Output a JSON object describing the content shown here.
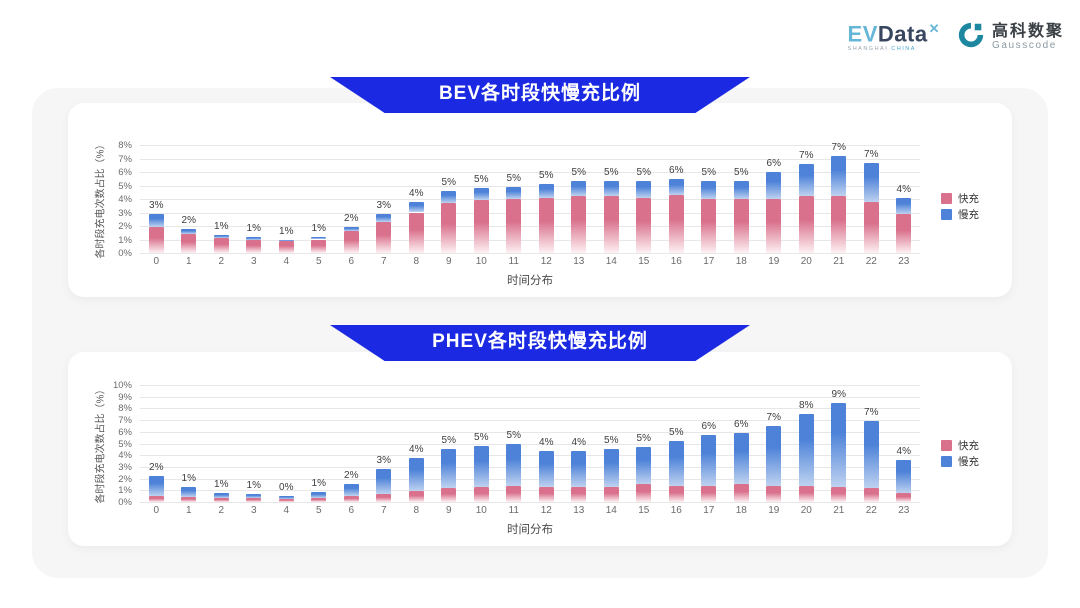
{
  "page": {
    "panel_bg": "#f7f6f7",
    "banner_color": "#1b2ae2",
    "fast_color": "#d9718c",
    "slow_color": "#4d82d8"
  },
  "header": {
    "evdata": {
      "ev": "EV",
      "data": "Data",
      "sup": "✕",
      "tagline_left": "SHANGHAI",
      "tagline_right": "CHINA"
    },
    "gausscode": {
      "cn": "高科数聚",
      "en": "Gausscode",
      "icon": "gausscode-g-mark",
      "icon_color": "#1d87a0"
    }
  },
  "chart_data": [
    {
      "type": "bar",
      "stacked": true,
      "title": "BEV各时段快慢充比例",
      "xlabel": "时间分布",
      "ylabel": "各时段充电次数占比（%）",
      "ylim": [
        0,
        8
      ],
      "ytick_step": 1,
      "grid": true,
      "legend_position": "right",
      "categories": [
        "0",
        "1",
        "2",
        "3",
        "4",
        "5",
        "6",
        "7",
        "8",
        "9",
        "10",
        "11",
        "12",
        "13",
        "14",
        "15",
        "16",
        "17",
        "18",
        "19",
        "20",
        "21",
        "22",
        "23"
      ],
      "series": [
        {
          "name": "快充",
          "color": "#d9718c",
          "color_fade": "#fdf1f4",
          "values": [
            1.9,
            1.4,
            1.1,
            0.95,
            0.9,
            1.0,
            1.6,
            2.3,
            3.0,
            3.7,
            3.9,
            4.0,
            4.1,
            4.2,
            4.2,
            4.1,
            4.3,
            4.0,
            4.0,
            4.0,
            4.2,
            4.2,
            3.8,
            2.9
          ]
        },
        {
          "name": "慢充",
          "color": "#4d82d8",
          "color_fade": "#bed2f0",
          "values": [
            1.0,
            0.4,
            0.25,
            0.2,
            0.1,
            0.2,
            0.35,
            0.6,
            0.8,
            0.9,
            0.9,
            0.9,
            1.0,
            1.1,
            1.1,
            1.2,
            1.2,
            1.3,
            1.3,
            2.0,
            2.4,
            3.0,
            2.9,
            1.2
          ]
        }
      ],
      "total_labels": [
        "3%",
        "2%",
        "1%",
        "1%",
        "1%",
        "1%",
        "2%",
        "3%",
        "4%",
        "5%",
        "5%",
        "5%",
        "5%",
        "5%",
        "5%",
        "5%",
        "6%",
        "5%",
        "5%",
        "6%",
        "7%",
        "7%",
        "7%",
        "4%"
      ]
    },
    {
      "type": "bar",
      "stacked": true,
      "title": "PHEV各时段快慢充比例",
      "xlabel": "时间分布",
      "ylabel": "各时段充电次数占比（%）",
      "ylim": [
        0,
        10
      ],
      "ytick_step": 1,
      "grid": true,
      "legend_position": "right",
      "categories": [
        "0",
        "1",
        "2",
        "3",
        "4",
        "5",
        "6",
        "7",
        "8",
        "9",
        "10",
        "11",
        "12",
        "13",
        "14",
        "15",
        "16",
        "17",
        "18",
        "19",
        "20",
        "21",
        "22",
        "23"
      ],
      "series": [
        {
          "name": "快充",
          "color": "#d9718c",
          "color_fade": "#fdf1f4",
          "values": [
            0.5,
            0.4,
            0.35,
            0.3,
            0.25,
            0.35,
            0.5,
            0.7,
            0.9,
            1.2,
            1.3,
            1.4,
            1.3,
            1.3,
            1.3,
            1.5,
            1.4,
            1.4,
            1.5,
            1.4,
            1.4,
            1.3,
            1.2,
            0.8
          ]
        },
        {
          "name": "慢充",
          "color": "#4d82d8",
          "color_fade": "#bed2f0",
          "values": [
            1.7,
            0.85,
            0.45,
            0.35,
            0.25,
            0.5,
            1.0,
            2.1,
            2.9,
            3.3,
            3.5,
            3.6,
            3.1,
            3.1,
            3.2,
            3.2,
            3.8,
            4.3,
            4.4,
            5.1,
            6.1,
            7.2,
            5.7,
            2.8
          ]
        }
      ],
      "total_labels": [
        "2%",
        "1%",
        "1%",
        "1%",
        "0%",
        "1%",
        "2%",
        "3%",
        "4%",
        "5%",
        "5%",
        "5%",
        "4%",
        "4%",
        "5%",
        "5%",
        "5%",
        "6%",
        "6%",
        "7%",
        "8%",
        "9%",
        "7%",
        "4%"
      ]
    }
  ]
}
